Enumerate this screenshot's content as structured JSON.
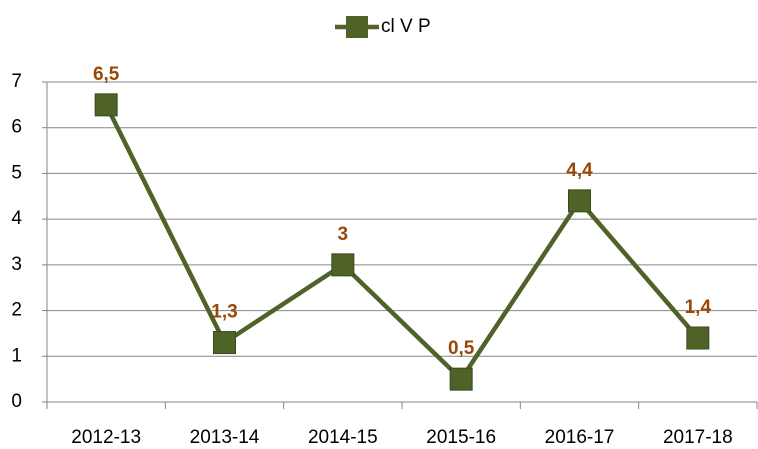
{
  "chart_data": {
    "type": "line",
    "categories": [
      "2012-13",
      "2013-14",
      "2014-15",
      "2015-16",
      "2016-17",
      "2017-18"
    ],
    "series": [
      {
        "name": "cl V P",
        "color": "#4f6228",
        "values": [
          6.5,
          1.3,
          3,
          0.5,
          4.4,
          1.4
        ],
        "value_labels": [
          "6,5",
          "1,3",
          "3",
          "0,5",
          "4,4",
          "1,4"
        ],
        "label_color": "#984807"
      }
    ],
    "ylim": [
      0,
      7
    ],
    "yticks": [
      0,
      1,
      2,
      3,
      4,
      5,
      6,
      7
    ],
    "grid": true,
    "legend": "top"
  }
}
